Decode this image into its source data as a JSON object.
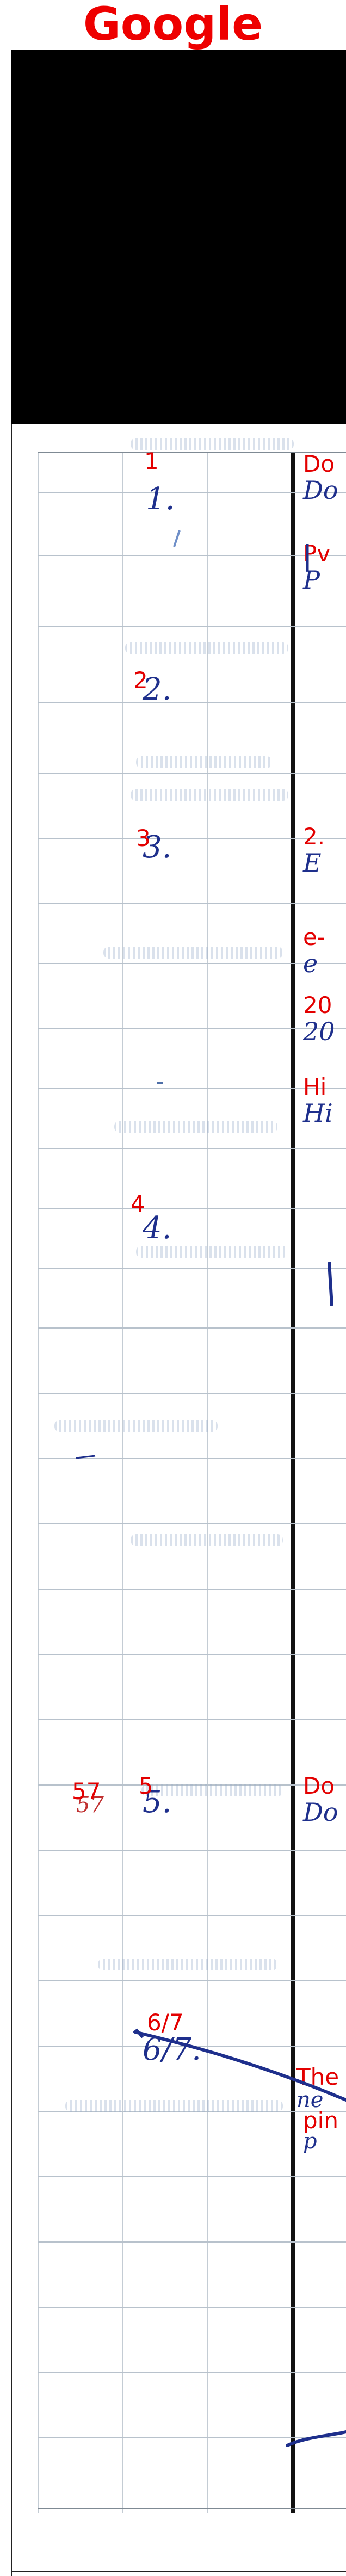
{
  "header": {
    "title": "Google"
  },
  "rows": [
    {
      "ocr_num": "1",
      "hand_num": "1.",
      "ocr_text": "Do",
      "hand_text": "Do"
    },
    {
      "ocr_num": "",
      "hand_num": "",
      "ocr_text": "Pv",
      "hand_text": "P"
    },
    {
      "ocr_num": "2",
      "hand_num": "2.",
      "ocr_text": "",
      "hand_text": ""
    },
    {
      "ocr_num": "3",
      "hand_num": "3.",
      "ocr_text": "2.",
      "hand_text": "E"
    },
    {
      "ocr_num": "",
      "hand_num": "",
      "ocr_text": "e-",
      "hand_text": "e"
    },
    {
      "ocr_num": "",
      "hand_num": "",
      "ocr_text": "20",
      "hand_text": "20"
    },
    {
      "ocr_num": "",
      "hand_num": "",
      "ocr_text": "Hi",
      "hand_text": "Hi"
    },
    {
      "ocr_num": "4",
      "hand_num": "4.",
      "ocr_text": "",
      "hand_text": ""
    },
    {
      "ocr_num": "5",
      "hand_num": "5.",
      "ocr_text": "Do",
      "hand_text": "Do"
    },
    {
      "ocr_num": "6/7",
      "hand_num": "6/7.",
      "ocr_text": "The",
      "hand_text": "ne"
    },
    {
      "ocr_num": "",
      "hand_num": "",
      "ocr_text": "pin",
      "hand_text": "p"
    }
  ],
  "side_note": {
    "ocr": "57",
    "hand": "57"
  },
  "colors": {
    "ocr": "#e30000",
    "ink": "#1e2f8c",
    "frame": "#000000"
  }
}
